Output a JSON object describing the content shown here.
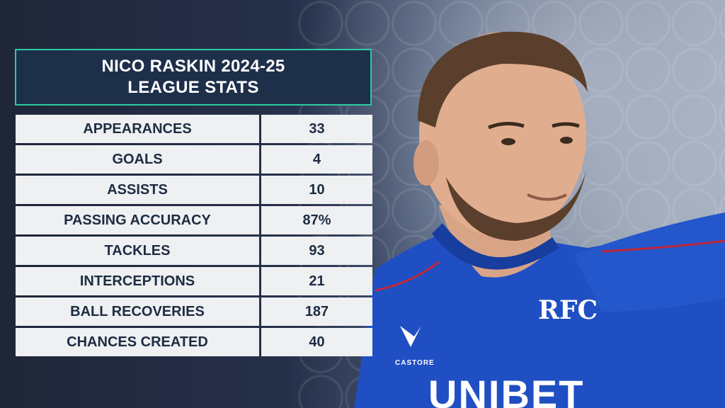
{
  "title": {
    "line1": "NICO RASKIN 2024-25",
    "line2": "LEAGUE STATS"
  },
  "stats": [
    {
      "label": "APPEARANCES",
      "value": "33"
    },
    {
      "label": "GOALS",
      "value": "4"
    },
    {
      "label": "ASSISTS",
      "value": "10"
    },
    {
      "label": "PASSING ACCURACY",
      "value": "87%"
    },
    {
      "label": "TACKLES",
      "value": "93"
    },
    {
      "label": "INTERCEPTIONS",
      "value": "21"
    },
    {
      "label": "BALL RECOVERIES",
      "value": "187"
    },
    {
      "label": "CHANCES CREATED",
      "value": "40"
    }
  ],
  "shirt": {
    "sponsor": "UNIBET",
    "kit_brand": "CASTORE",
    "crest": "RFC"
  },
  "colors": {
    "accent": "#2dc9a0",
    "title_bg": "#1e2f4a",
    "cell_bg": "#eef0f2",
    "cell_text": "#1e2c42",
    "shirt": "#1f4fc2"
  }
}
